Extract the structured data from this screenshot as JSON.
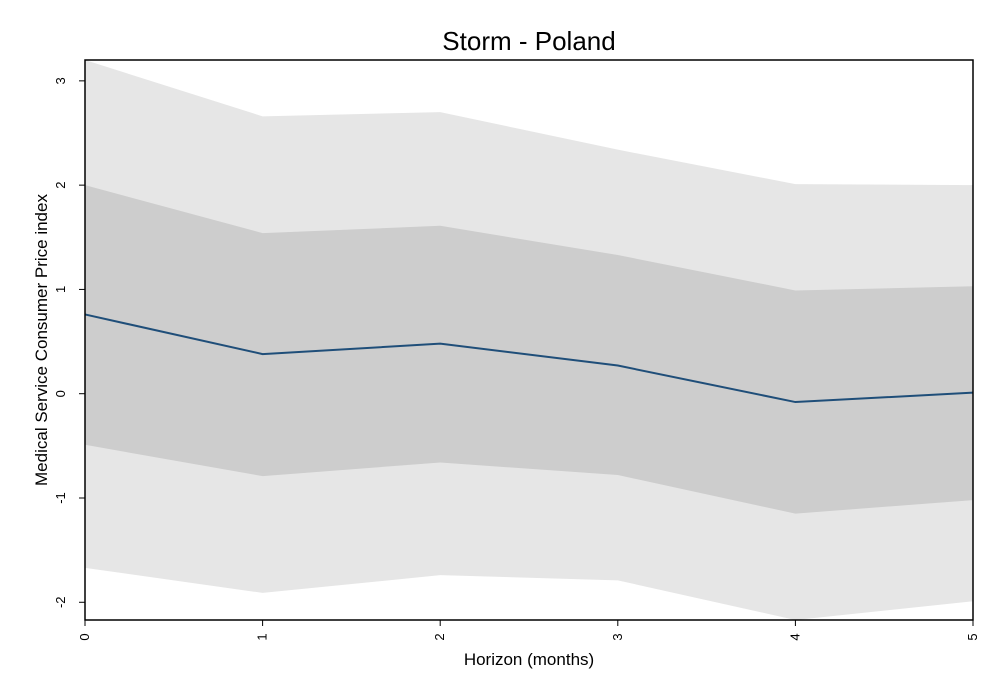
{
  "chart_data": {
    "type": "area",
    "title": "Storm - Poland",
    "xlabel": "Horizon (months)",
    "ylabel": "Medical Service Consumer Price index",
    "x": [
      0,
      1,
      2,
      3,
      4,
      5
    ],
    "xticks": [
      "0",
      "1",
      "2",
      "3",
      "4",
      "5"
    ],
    "yticks": [
      "-2",
      "-1",
      "0",
      "1",
      "2",
      "3"
    ],
    "ytick_values": [
      -2,
      -1,
      0,
      1,
      2,
      3
    ],
    "xlim": [
      0,
      5
    ],
    "ylim": [
      -2.17,
      3.2
    ],
    "grid": false,
    "series": [
      {
        "role": "outer_band",
        "lower": [
          -1.67,
          -1.91,
          -1.74,
          -1.79,
          -2.17,
          -1.99
        ],
        "upper": [
          3.2,
          2.66,
          2.7,
          2.34,
          2.01,
          2.0
        ]
      },
      {
        "role": "inner_band",
        "lower": [
          -0.49,
          -0.79,
          -0.66,
          -0.78,
          -1.15,
          -1.02
        ],
        "upper": [
          2.0,
          1.54,
          1.61,
          1.33,
          0.99,
          1.03
        ]
      },
      {
        "role": "point_estimate",
        "values": [
          0.76,
          0.38,
          0.48,
          0.27,
          -0.08,
          0.01
        ]
      }
    ],
    "colors": {
      "outer_band": "#e6e6e6",
      "inner_band": "#cdcdcd",
      "line": "#1f4e79",
      "frame": "#000000"
    }
  }
}
